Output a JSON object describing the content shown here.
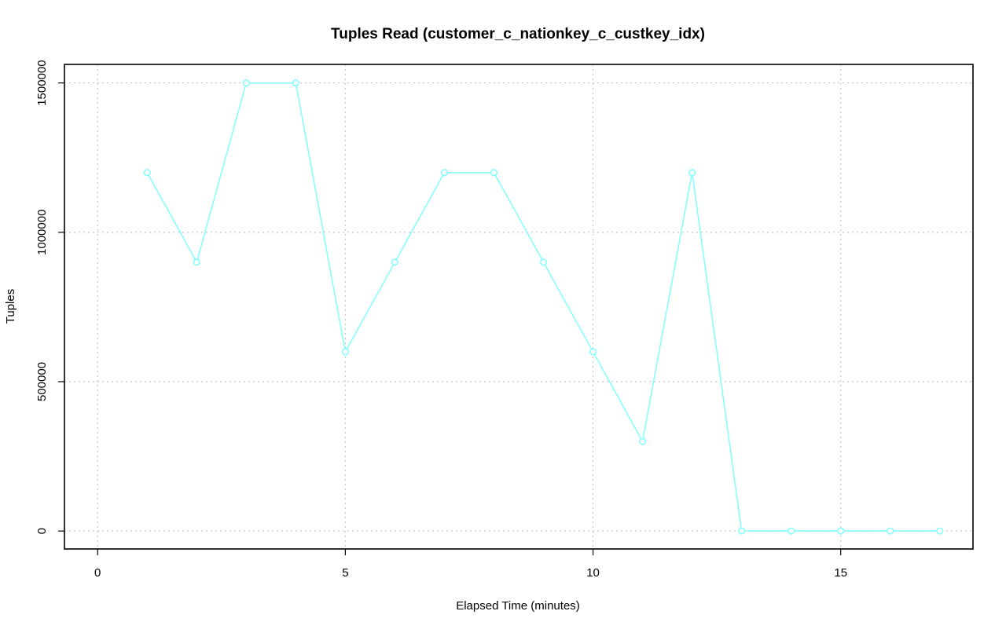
{
  "chart_data": {
    "type": "line",
    "title": "Tuples Read (customer_c_nationkey_c_custkey_idx)",
    "xlabel": "Elapsed Time (minutes)",
    "ylabel": "Tuples",
    "xlim": [
      -0.67,
      17.67
    ],
    "ylim": [
      -60000,
      1562000
    ],
    "x_ticks": [
      0,
      5,
      10,
      15
    ],
    "y_ticks": [
      0,
      500000,
      1000000,
      1500000
    ],
    "x_tick_labels": [
      "0",
      "5",
      "10",
      "15"
    ],
    "y_tick_labels": [
      "0",
      "500000",
      "1000000",
      "1500000"
    ],
    "grid": true,
    "legend": "none",
    "series": [
      {
        "color": "#7fffff",
        "x": [
          1,
          2,
          3,
          4,
          5,
          6,
          7,
          8,
          9,
          10,
          11,
          12,
          13,
          14,
          15,
          16,
          17
        ],
        "y": [
          1200000,
          900000,
          1500000,
          1500000,
          600000,
          900000,
          1200000,
          1200000,
          900000,
          600000,
          300000,
          1200000,
          0,
          0,
          0,
          0,
          0
        ]
      }
    ]
  }
}
